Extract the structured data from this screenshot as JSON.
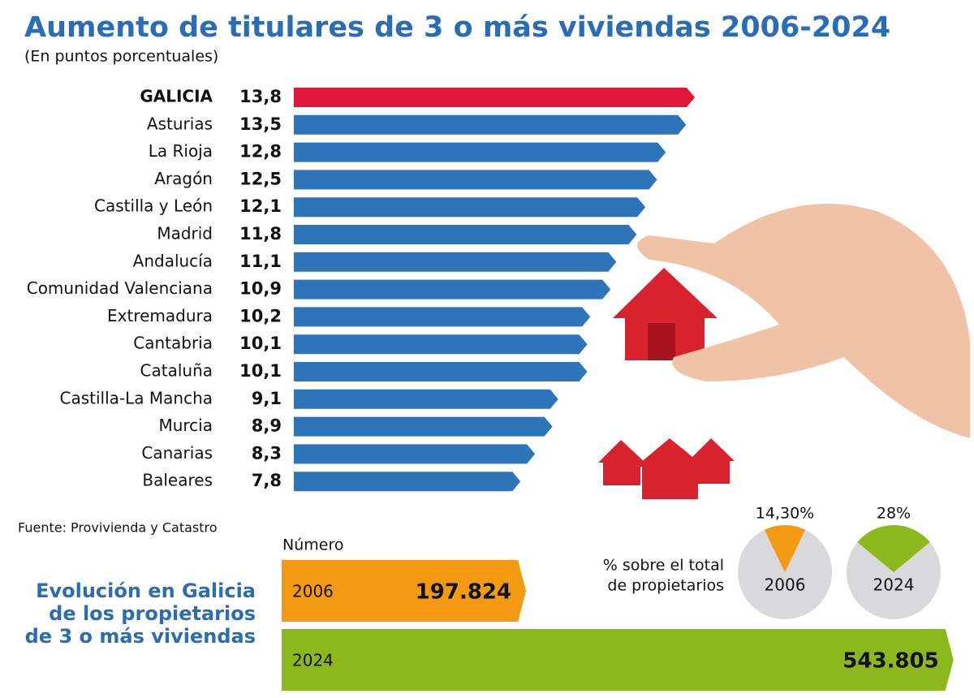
{
  "title": "Aumento de titulares de 3 o más viviendas 2006-2024",
  "subtitle": "(En puntos porcentuales)",
  "source": "Fuente: Provivienda y Catastro",
  "chart_data": [
    {
      "type": "hbar",
      "categories": [
        "GALICIA",
        "Asturias",
        "La Rioja",
        "Aragón",
        "Castilla y León",
        "Madrid",
        "Andalucía",
        "Comunidad Valenciana",
        "Extremadura",
        "Cantabria",
        "Cataluña",
        "Castilla-La Mancha",
        "Murcia",
        "Canarias",
        "Baleares"
      ],
      "values": [
        13.8,
        13.5,
        12.8,
        12.5,
        12.1,
        11.8,
        11.1,
        10.9,
        10.2,
        10.1,
        10.1,
        9.1,
        8.9,
        8.3,
        7.8
      ],
      "value_labels": [
        "13,8",
        "13,5",
        "12,8",
        "12,5",
        "12,1",
        "11,8",
        "11,1",
        "10,9",
        "10,2",
        "10,1",
        "10,1",
        "9,1",
        "8,9",
        "8,3",
        "7,8"
      ],
      "colors": [
        "#e0183c",
        "#2e74b8",
        "#2e74b8",
        "#2e74b8",
        "#2e74b8",
        "#2e74b8",
        "#2e74b8",
        "#2e74b8",
        "#2e74b8",
        "#2e74b8",
        "#2e74b8",
        "#2e74b8",
        "#2e74b8",
        "#2e74b8",
        "#2e74b8"
      ]
    },
    {
      "type": "hbar-big",
      "title": [
        "Evolución en Galicia",
        "de los  propietarios",
        "de 3 o más viviendas"
      ],
      "subtitle": "Número",
      "categories": [
        "2006",
        "2024"
      ],
      "values": [
        197824,
        543805
      ],
      "value_labels": [
        "197.824",
        "543.805"
      ],
      "colors": [
        "#f39a12",
        "#8cb81c"
      ]
    },
    {
      "type": "pie",
      "title": [
        "% sobre el total",
        "de propietarios"
      ],
      "categories": [
        "2006",
        "2024"
      ],
      "values": [
        14.3,
        28
      ],
      "value_labels": [
        "14,30%",
        "28%"
      ],
      "colors": [
        "#f39a12",
        "#8cb81c"
      ]
    }
  ]
}
